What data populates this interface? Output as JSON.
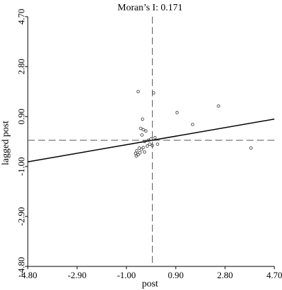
{
  "chart_data": {
    "type": "scatter",
    "title": "Moran’s I: 0.171",
    "xlabel": "post",
    "ylabel": "lagged post",
    "xlim": [
      -4.8,
      4.7
    ],
    "ylim": [
      -4.8,
      4.7
    ],
    "xticks": [
      "-4.80",
      "-2.90",
      "-1.00",
      "0.90",
      "2.80",
      "4.70"
    ],
    "yticks": [
      "-4.80",
      "-2.90",
      "-1.00",
      "0.90",
      "2.80",
      "4.70"
    ],
    "xtick_values": [
      -4.8,
      -2.9,
      -1.0,
      0.9,
      2.8,
      4.7
    ],
    "ytick_values": [
      -4.8,
      -2.9,
      -1.0,
      0.9,
      2.8,
      4.7
    ],
    "mean_x": 0.0,
    "mean_y": 0.0,
    "grid": false,
    "regression": {
      "slope": 0.171,
      "intercept": 0.0
    },
    "points": [
      {
        "x": -0.55,
        "y": 1.85
      },
      {
        "x": 0.05,
        "y": 1.8
      },
      {
        "x": 2.55,
        "y": 1.3
      },
      {
        "x": 0.95,
        "y": 1.05
      },
      {
        "x": -0.38,
        "y": 0.8
      },
      {
        "x": 1.55,
        "y": 0.6
      },
      {
        "x": -0.45,
        "y": 0.45
      },
      {
        "x": -0.35,
        "y": 0.4
      },
      {
        "x": -0.25,
        "y": 0.35
      },
      {
        "x": -0.4,
        "y": 0.2
      },
      {
        "x": 0.1,
        "y": 0.1
      },
      {
        "x": -0.05,
        "y": 0.05
      },
      {
        "x": -0.15,
        "y": 0.0
      },
      {
        "x": -0.3,
        "y": -0.05
      },
      {
        "x": 0.2,
        "y": -0.15
      },
      {
        "x": -0.1,
        "y": -0.15
      },
      {
        "x": 0.0,
        "y": -0.2
      },
      {
        "x": -0.2,
        "y": -0.22
      },
      {
        "x": -0.35,
        "y": -0.28
      },
      {
        "x": -0.5,
        "y": -0.3
      },
      {
        "x": -0.42,
        "y": -0.35
      },
      {
        "x": -0.6,
        "y": -0.4
      },
      {
        "x": -0.3,
        "y": -0.45
      },
      {
        "x": -0.48,
        "y": -0.48
      },
      {
        "x": -0.65,
        "y": -0.5
      },
      {
        "x": -0.55,
        "y": -0.55
      },
      {
        "x": -0.62,
        "y": -0.6
      },
      {
        "x": 3.8,
        "y": -0.3
      }
    ]
  }
}
